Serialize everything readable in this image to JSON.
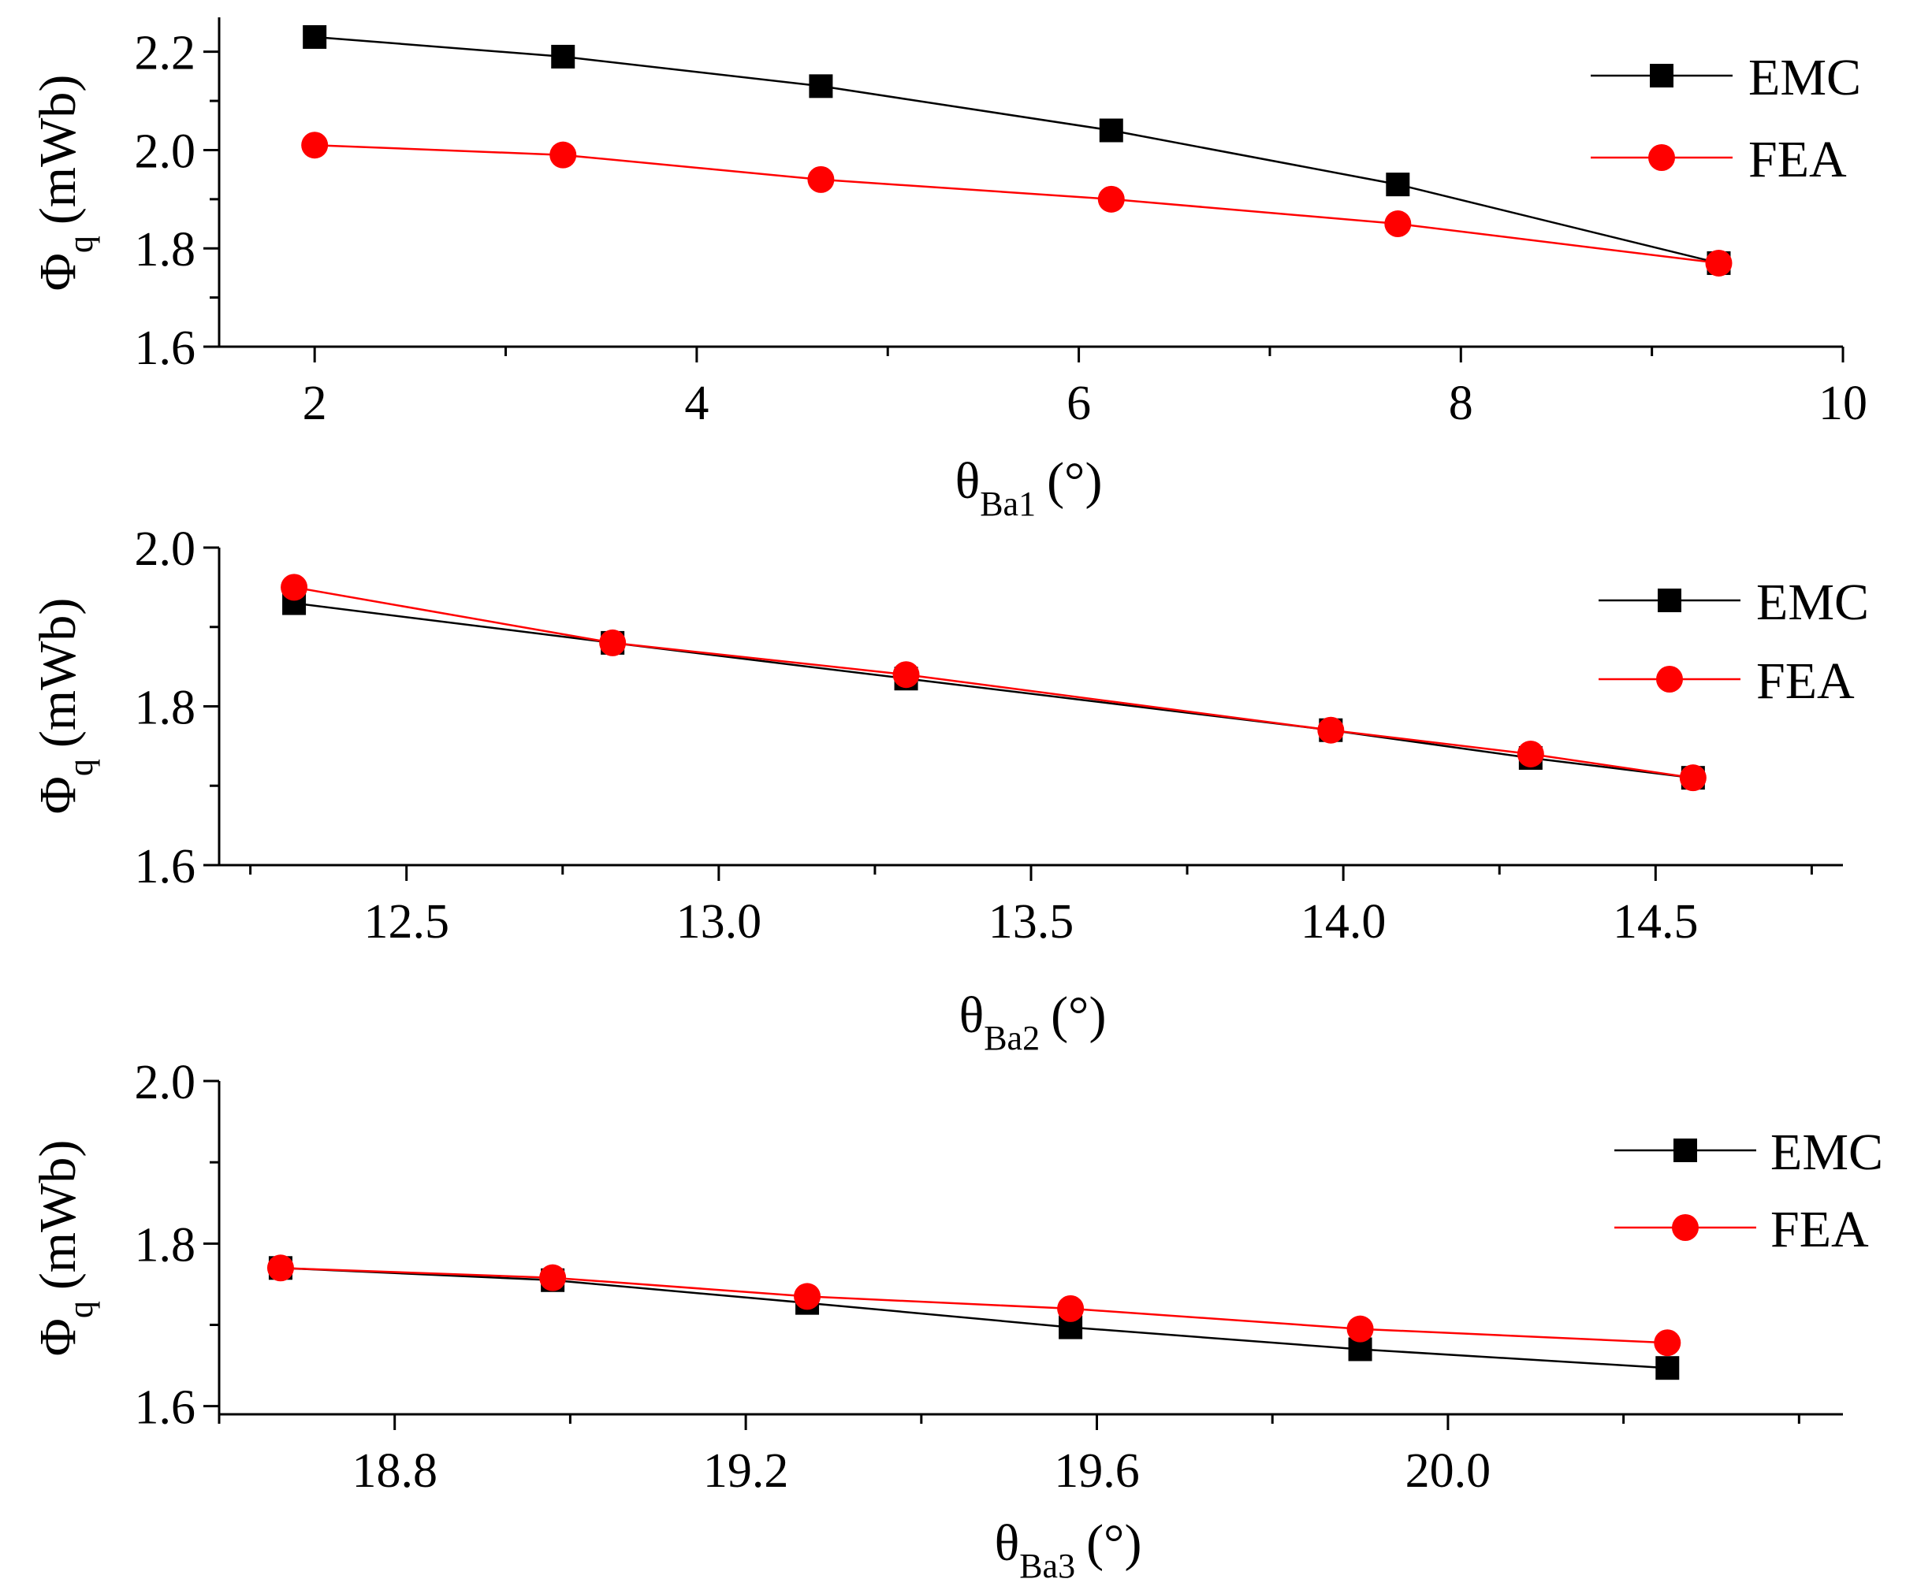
{
  "chart_data": [
    {
      "type": "line",
      "xlabel": {
        "main": "θ",
        "sub": "Ba1",
        "unit": "(°)"
      },
      "ylabel": {
        "main": "Φ",
        "sub": "q",
        "unit": "(mWb)"
      },
      "xlim": [
        1.5,
        10
      ],
      "ylim": [
        1.6,
        2.27
      ],
      "xticks": [
        2,
        4,
        6,
        8,
        10
      ],
      "xtick_labels": [
        "2",
        "4",
        "6",
        "8",
        "10"
      ],
      "x_minor_step": 1,
      "yticks": [
        1.6,
        1.8,
        2.0,
        2.2
      ],
      "ytick_labels": [
        "1.6",
        "1.8",
        "2.0",
        "2.2"
      ],
      "y_minor_step": 0.1,
      "legend": "top-right",
      "series": [
        {
          "name": "EMC",
          "color": "#000000",
          "marker": "square",
          "x": [
            2.0,
            3.3,
            4.65,
            6.17,
            7.67,
            9.35
          ],
          "y": [
            2.23,
            2.19,
            2.13,
            2.04,
            1.93,
            1.77
          ]
        },
        {
          "name": "FEA",
          "color": "#ff0000",
          "marker": "circle",
          "x": [
            2.0,
            3.3,
            4.65,
            6.17,
            7.67,
            9.35
          ],
          "y": [
            2.01,
            1.99,
            1.94,
            1.9,
            1.85,
            1.77
          ]
        }
      ]
    },
    {
      "type": "line",
      "xlabel": {
        "main": "θ",
        "sub": "Ba2",
        "unit": "(°)"
      },
      "ylabel": {
        "main": "Φ",
        "sub": "q",
        "unit": "(mWb)"
      },
      "xlim": [
        12.2,
        14.8
      ],
      "ylim": [
        1.6,
        2.0
      ],
      "xticks": [
        12.5,
        13.0,
        13.5,
        14.0,
        14.5
      ],
      "xtick_labels": [
        "12.5",
        "13.0",
        "13.5",
        "14.0",
        "14.5"
      ],
      "x_minor_step": 0.25,
      "yticks": [
        1.6,
        1.8,
        2.0
      ],
      "ytick_labels": [
        "1.6",
        "1.8",
        "2.0"
      ],
      "y_minor_step": 0.1,
      "legend": "top-right",
      "series": [
        {
          "name": "EMC",
          "color": "#000000",
          "marker": "square",
          "x": [
            12.32,
            12.83,
            13.3,
            13.98,
            14.3,
            14.56
          ],
          "y": [
            1.93,
            1.88,
            1.835,
            1.77,
            1.735,
            1.71
          ]
        },
        {
          "name": "FEA",
          "color": "#ff0000",
          "marker": "circle",
          "x": [
            12.32,
            12.83,
            13.3,
            13.98,
            14.3,
            14.56
          ],
          "y": [
            1.95,
            1.88,
            1.84,
            1.77,
            1.74,
            1.71
          ]
        }
      ]
    },
    {
      "type": "line",
      "xlabel": {
        "main": "θ",
        "sub": "Ba3",
        "unit": "(°)"
      },
      "ylabel": {
        "main": "Φ",
        "sub": "q",
        "unit": "(mWb)"
      },
      "xlim": [
        18.6,
        20.45
      ],
      "ylim": [
        1.59,
        2.0
      ],
      "xticks": [
        18.8,
        19.2,
        19.6,
        20.0
      ],
      "xtick_labels": [
        "18.8",
        "19.2",
        "19.6",
        "20.0"
      ],
      "x_minor_step": 0.2,
      "yticks": [
        1.6,
        1.8,
        2.0
      ],
      "ytick_labels": [
        "1.6",
        "1.8",
        "2.0"
      ],
      "y_minor_step": 0.1,
      "legend": "top-right",
      "series": [
        {
          "name": "EMC",
          "color": "#000000",
          "marker": "square",
          "x": [
            18.67,
            18.98,
            19.27,
            19.57,
            19.9,
            20.25
          ],
          "y": [
            1.77,
            1.755,
            1.727,
            1.697,
            1.67,
            1.647
          ]
        },
        {
          "name": "FEA",
          "color": "#ff0000",
          "marker": "circle",
          "x": [
            18.67,
            18.98,
            19.27,
            19.57,
            19.9,
            20.25
          ],
          "y": [
            1.77,
            1.758,
            1.735,
            1.72,
            1.695,
            1.678
          ]
        }
      ]
    }
  ]
}
